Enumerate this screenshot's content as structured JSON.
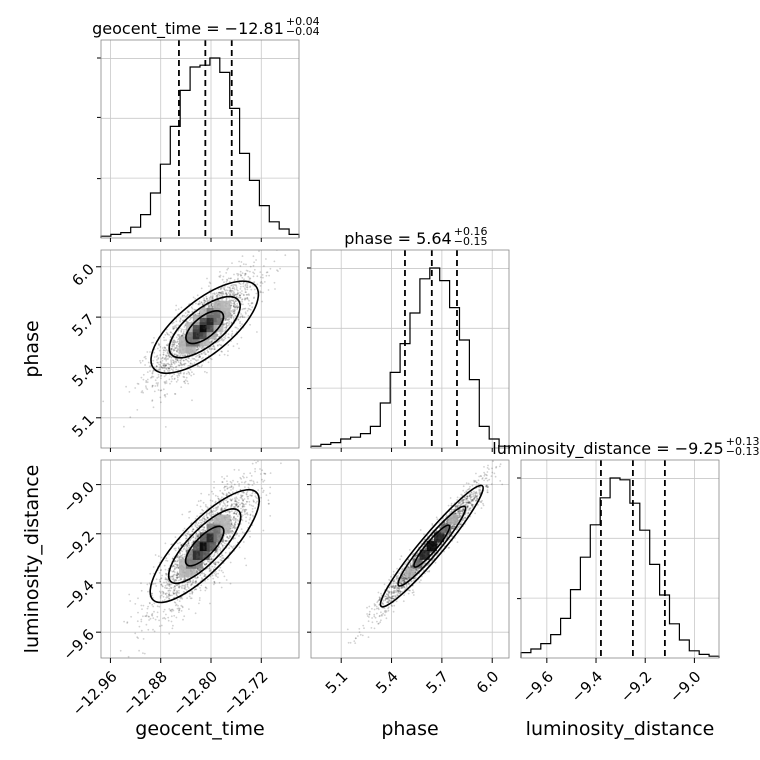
{
  "chart_data": {
    "type": "corner",
    "parameters": [
      {
        "name": "geocent_time",
        "label": "geocent_time",
        "median": -12.81,
        "plus": 0.04,
        "minus": 0.04,
        "range": [
          -12.975,
          -12.66
        ],
        "ticks": [
          -12.96,
          -12.88,
          -12.8,
          -12.72
        ],
        "tick_labels": [
          "−12.96",
          "−12.88",
          "−12.80",
          "−12.72"
        ],
        "quantiles": [
          -12.851,
          -12.809,
          -12.767
        ],
        "title_main": "geocent_time = −12.81",
        "title_plus": "+0.04",
        "title_minus": "−0.04"
      },
      {
        "name": "phase",
        "label": "phase",
        "median": 5.64,
        "plus": 0.16,
        "minus": 0.15,
        "range": [
          4.92,
          6.1
        ],
        "ticks": [
          5.1,
          5.4,
          5.7,
          6.0
        ],
        "tick_labels": [
          "5.1",
          "5.4",
          "5.7",
          "6.0"
        ],
        "quantiles": [
          5.48,
          5.64,
          5.79
        ],
        "title_main": "phase = 5.64",
        "title_plus": "+0.16",
        "title_minus": "−0.15"
      },
      {
        "name": "luminosity_distance",
        "label": "luminosity_distance",
        "median": -9.25,
        "plus": 0.13,
        "minus": 0.13,
        "range": [
          -9.705,
          -8.9
        ],
        "ticks": [
          -9.6,
          -9.4,
          -9.2,
          -9.0
        ],
        "tick_labels": [
          "−9.6",
          "−9.4",
          "−9.2",
          "−9.0"
        ],
        "quantiles": [
          -9.38,
          -9.25,
          -9.12
        ],
        "title_main": "luminosity_distance = −9.25",
        "title_plus": "+0.13",
        "title_minus": "−0.13"
      }
    ],
    "histograms": [
      {
        "param": "geocent_time",
        "relative_counts": [
          0.01,
          0.02,
          0.03,
          0.06,
          0.13,
          0.25,
          0.41,
          0.62,
          0.82,
          0.95,
          0.96,
          1.0,
          0.92,
          0.72,
          0.47,
          0.32,
          0.18,
          0.09,
          0.05,
          0.02
        ]
      },
      {
        "param": "phase",
        "relative_counts": [
          0.01,
          0.02,
          0.03,
          0.05,
          0.06,
          0.08,
          0.12,
          0.25,
          0.42,
          0.58,
          0.75,
          0.94,
          1.0,
          0.93,
          0.78,
          0.6,
          0.38,
          0.12,
          0.05,
          0.01
        ]
      },
      {
        "param": "luminosity_distance",
        "relative_counts": [
          0.03,
          0.05,
          0.08,
          0.13,
          0.22,
          0.38,
          0.56,
          0.74,
          0.89,
          1.0,
          0.99,
          0.86,
          0.71,
          0.52,
          0.35,
          0.19,
          0.1,
          0.04,
          0.02,
          0.01
        ]
      }
    ],
    "correlations": {
      "phase_vs_geocent_time": 0.78,
      "luminosity_distance_vs_geocent_time": 0.82,
      "luminosity_distance_vs_phase": 0.97
    },
    "grid": true
  }
}
